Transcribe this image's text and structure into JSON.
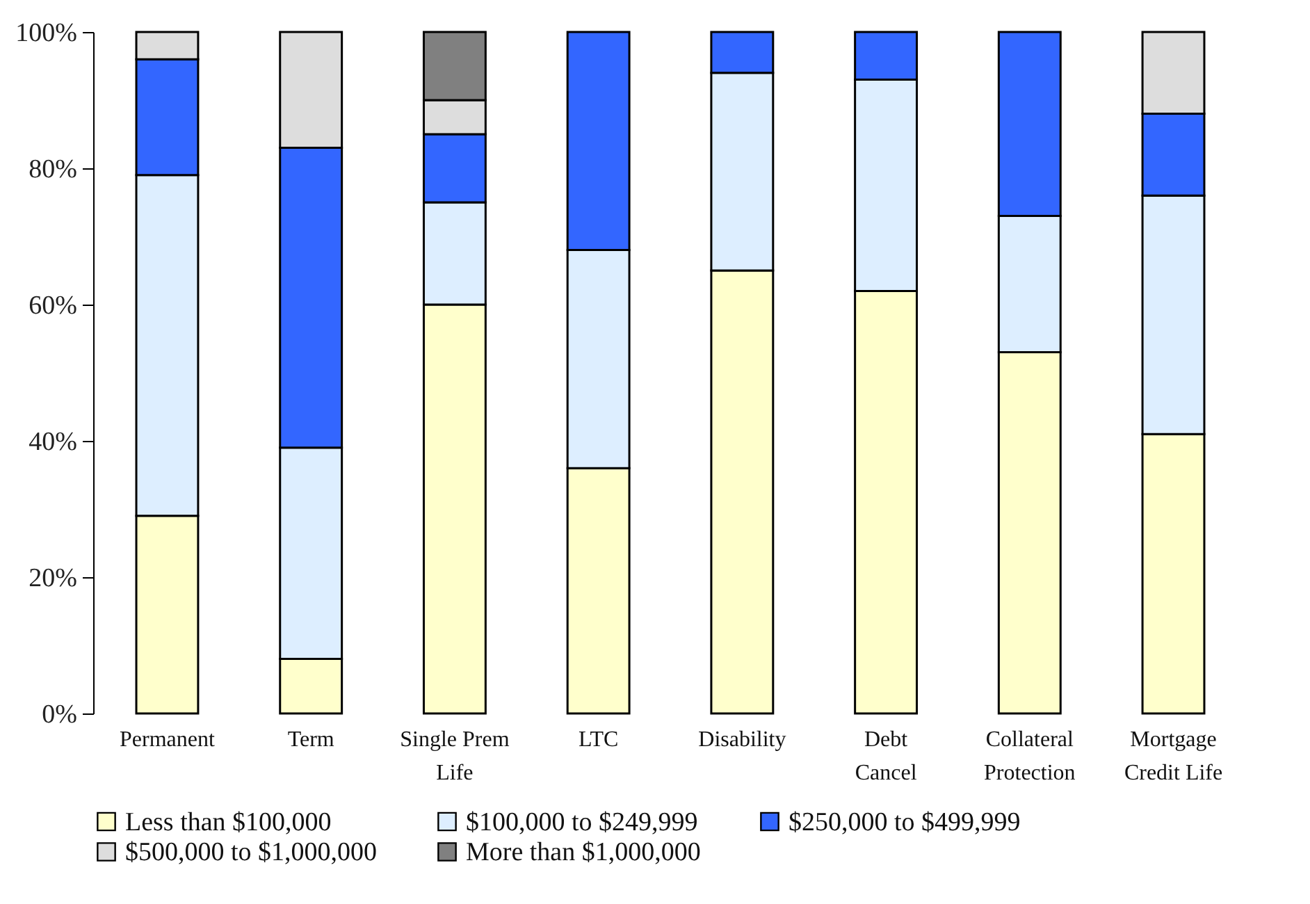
{
  "chart_data": {
    "type": "bar",
    "stacked": true,
    "categories": [
      "Permanent",
      "Term",
      "Single Prem Life",
      "LTC",
      "Disability",
      "Debt Cancel",
      "Collateral Protection",
      "Mortgage Credit Life"
    ],
    "series": [
      {
        "name": "Less than $100,000",
        "color": "#ffffcc",
        "values": [
          29,
          8,
          60,
          36,
          65,
          62,
          53,
          41
        ]
      },
      {
        "name": "$100,000 to $249,999",
        "color": "#ddeeff",
        "values": [
          50,
          31,
          15,
          32,
          29,
          31,
          20,
          35
        ]
      },
      {
        "name": "$250,000 to $499,999",
        "color": "#3366ff",
        "values": [
          17,
          44,
          10,
          32,
          6,
          7,
          27,
          12
        ]
      },
      {
        "name": "$500,000 to $1,000,000",
        "color": "#dddddd",
        "values": [
          4,
          17,
          5,
          null,
          null,
          null,
          null,
          12
        ]
      },
      {
        "name": "More than $1,000,000",
        "color": "#808080",
        "values": [
          null,
          null,
          10,
          null,
          null,
          null,
          null,
          null
        ]
      }
    ],
    "ylim": [
      0,
      100
    ],
    "yticks": [
      {
        "value": 0,
        "label": "0%"
      },
      {
        "value": 20,
        "label": "20%"
      },
      {
        "value": 40,
        "label": "40%"
      },
      {
        "value": 60,
        "label": "60%"
      },
      {
        "value": 80,
        "label": "80%"
      },
      {
        "value": 100,
        "label": "100%"
      }
    ],
    "grid": false,
    "legend": "bottom"
  }
}
